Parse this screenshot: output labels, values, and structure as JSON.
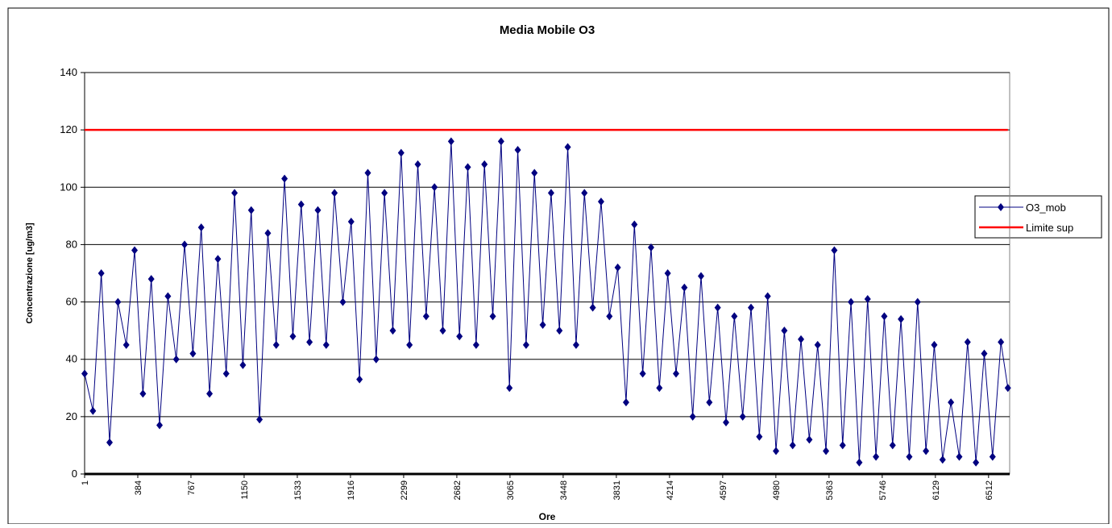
{
  "chart_data": {
    "type": "line",
    "title": "Media Mobile O3",
    "x_label": "Ore",
    "y_label": "Concentrazione [ug/m3]",
    "x": [
      1,
      61,
      121,
      181,
      241,
      301,
      361,
      421,
      481,
      541,
      601,
      661,
      721,
      781,
      841,
      901,
      961,
      1021,
      1081,
      1141,
      1201,
      1261,
      1321,
      1381,
      1441,
      1501,
      1561,
      1621,
      1681,
      1741,
      1801,
      1861,
      1921,
      1981,
      2041,
      2101,
      2161,
      2221,
      2281,
      2341,
      2401,
      2461,
      2521,
      2581,
      2641,
      2701,
      2761,
      2821,
      2881,
      2941,
      3001,
      3061,
      3121,
      3181,
      3241,
      3301,
      3361,
      3421,
      3481,
      3541,
      3601,
      3661,
      3721,
      3781,
      3841,
      3901,
      3961,
      4021,
      4081,
      4141,
      4201,
      4261,
      4321,
      4381,
      4441,
      4501,
      4561,
      4621,
      4681,
      4741,
      4801,
      4861,
      4921,
      4981,
      5041,
      5101,
      5161,
      5221,
      5281,
      5341,
      5401,
      5461,
      5521,
      5581,
      5641,
      5701,
      5761,
      5821,
      5881,
      5941,
      6001,
      6061,
      6121,
      6181,
      6241,
      6301,
      6361,
      6421,
      6481,
      6541,
      6601,
      6651
    ],
    "series": [
      {
        "name": "O3_mob",
        "color": "#000080",
        "marker": "diamond",
        "values": [
          35,
          22,
          70,
          11,
          60,
          45,
          78,
          28,
          68,
          17,
          62,
          40,
          80,
          42,
          86,
          28,
          75,
          35,
          98,
          38,
          92,
          19,
          84,
          45,
          103,
          48,
          94,
          46,
          92,
          45,
          98,
          60,
          88,
          33,
          105,
          40,
          98,
          50,
          112,
          45,
          108,
          55,
          100,
          50,
          116,
          48,
          107,
          45,
          108,
          55,
          116,
          30,
          113,
          45,
          105,
          52,
          98,
          50,
          114,
          45,
          98,
          58,
          95,
          55,
          72,
          25,
          87,
          35,
          79,
          30,
          70,
          35,
          65,
          20,
          69,
          25,
          58,
          18,
          55,
          20,
          58,
          13,
          62,
          8,
          50,
          10,
          47,
          12,
          45,
          8,
          78,
          10,
          60,
          4,
          61,
          6,
          55,
          10,
          54,
          6,
          60,
          8,
          45,
          5,
          25,
          6,
          46,
          4,
          42,
          6,
          46,
          30
        ]
      },
      {
        "name": "Limite sup",
        "color": "#ff0000",
        "marker": "none",
        "x": [
          1,
          6651
        ],
        "values": [
          120,
          120
        ]
      }
    ],
    "xlim": [
      1,
      6664
    ],
    "xticks": [
      1,
      384,
      767,
      1150,
      1533,
      1916,
      2299,
      2682,
      3065,
      3448,
      3831,
      4214,
      4597,
      4980,
      5363,
      5746,
      6129,
      6512
    ],
    "ylim": [
      0,
      140
    ],
    "yticks": [
      0,
      20,
      40,
      60,
      80,
      100,
      120,
      140
    ],
    "grid": true,
    "legend": "right"
  }
}
